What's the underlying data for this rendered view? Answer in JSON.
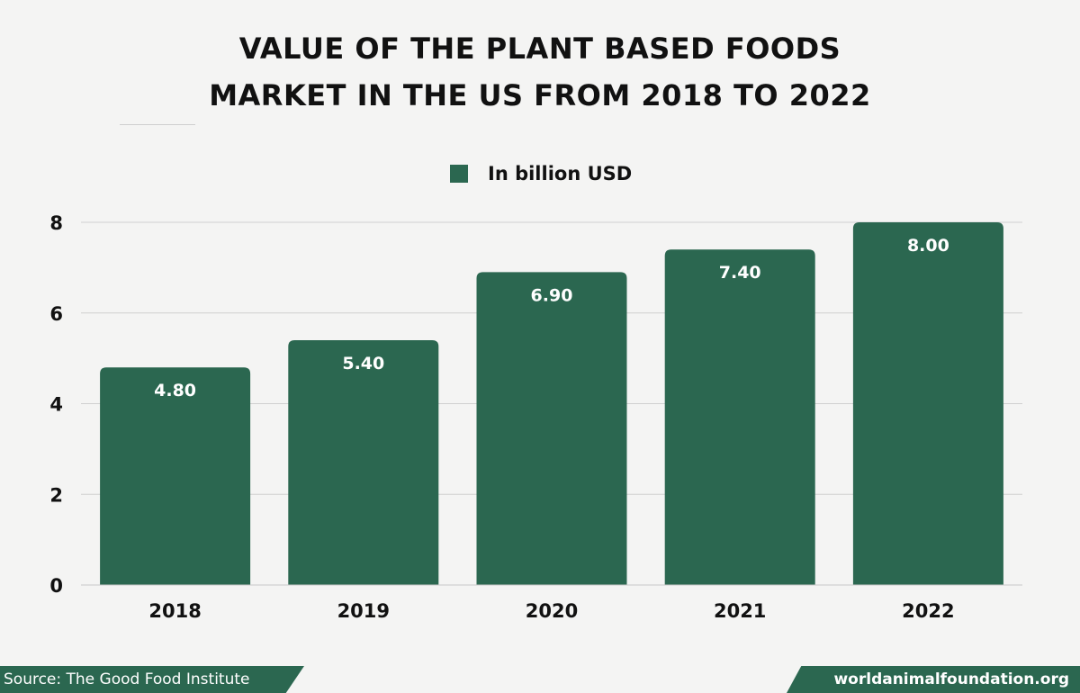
{
  "header": {
    "title_line1": "VALUE OF THE PLANT BASED FOODS",
    "title_line2": "MARKET IN THE US FROM 2018 TO 2022"
  },
  "legend": {
    "label": "In billion USD"
  },
  "footer": {
    "source": "Source: The Good Food Institute",
    "site": "worldanimalfoundation.org"
  },
  "colors": {
    "bar": "#2b6750",
    "background": "#f4f4f3",
    "grid": "#d0d0d0"
  },
  "chart_data": {
    "type": "bar",
    "categories": [
      "2018",
      "2019",
      "2020",
      "2021",
      "2022"
    ],
    "series": [
      {
        "name": "In billion USD",
        "values": [
          4.8,
          5.4,
          6.9,
          7.4,
          8.0
        ],
        "labels": [
          "4.80",
          "5.40",
          "6.90",
          "7.40",
          "8.00"
        ]
      }
    ],
    "yticks": [
      0,
      2,
      4,
      6,
      8
    ],
    "ylim": [
      0,
      8
    ],
    "grid": true,
    "legend_position": "top-center",
    "title": "VALUE OF THE PLANT BASED FOODS MARKET IN THE US FROM 2018 TO 2022"
  }
}
